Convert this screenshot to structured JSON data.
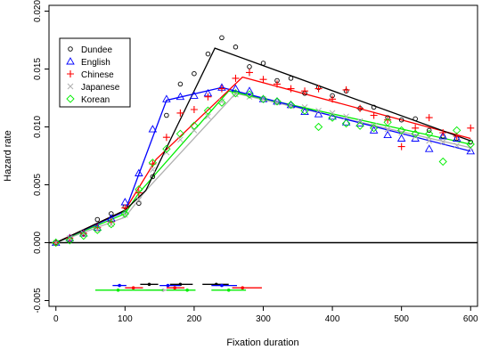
{
  "chart_data": {
    "type": "scatter",
    "title": "",
    "xlabel": "Fixation duration",
    "ylabel": "Hazard rate",
    "xlim": [
      -10,
      610
    ],
    "ylim": [
      -0.0055,
      0.0205
    ],
    "xticks": [
      0,
      100,
      200,
      300,
      400,
      500,
      600
    ],
    "yticks": [
      -0.005,
      0.0,
      0.005,
      0.01,
      0.015,
      0.02
    ],
    "ytick_labels": [
      "-0.005",
      "0.000",
      "0.005",
      "0.010",
      "0.015",
      "0.020"
    ],
    "reference_line": 0,
    "grid": false,
    "legend_position": "top-left",
    "series": [
      {
        "name": "Dundee",
        "marker": "circle",
        "color": "#000000",
        "points": [
          [
            0,
            0.0
          ],
          [
            20,
            0.0002
          ],
          [
            40,
            0.0008
          ],
          [
            60,
            0.002
          ],
          [
            80,
            0.0025
          ],
          [
            100,
            0.0031
          ],
          [
            120,
            0.0034
          ],
          [
            140,
            0.0057
          ],
          [
            160,
            0.011
          ],
          [
            180,
            0.0137
          ],
          [
            200,
            0.0146
          ],
          [
            220,
            0.0163
          ],
          [
            240,
            0.0177
          ],
          [
            260,
            0.0169
          ],
          [
            280,
            0.0152
          ],
          [
            300,
            0.0155
          ],
          [
            320,
            0.014
          ],
          [
            340,
            0.0142
          ],
          [
            360,
            0.0129
          ],
          [
            380,
            0.0134
          ],
          [
            400,
            0.0127
          ],
          [
            420,
            0.0131
          ],
          [
            440,
            0.0116
          ],
          [
            460,
            0.0117
          ],
          [
            480,
            0.0108
          ],
          [
            500,
            0.0106
          ],
          [
            520,
            0.0107
          ],
          [
            540,
            0.0097
          ],
          [
            560,
            0.0092
          ],
          [
            580,
            0.009
          ],
          [
            600,
            0.0087
          ]
        ],
        "fit": [
          [
            0,
            0.0
          ],
          [
            100,
            0.0028
          ],
          [
            130,
            0.0045
          ],
          [
            230,
            0.0168
          ],
          [
            600,
            0.0088
          ]
        ],
        "interval": {
          "center": 135,
          "low": 122,
          "high": 148,
          "y": -0.0036
        }
      },
      {
        "name": "English",
        "marker": "triangle",
        "color": "#0000ff",
        "points": [
          [
            0,
            0.0
          ],
          [
            20,
            0.0004
          ],
          [
            40,
            0.0008
          ],
          [
            60,
            0.0013
          ],
          [
            80,
            0.0021
          ],
          [
            100,
            0.0035
          ],
          [
            120,
            0.006
          ],
          [
            140,
            0.0098
          ],
          [
            160,
            0.0124
          ],
          [
            180,
            0.0126
          ],
          [
            200,
            0.0127
          ],
          [
            220,
            0.0129
          ],
          [
            240,
            0.0134
          ],
          [
            260,
            0.0133
          ],
          [
            280,
            0.0131
          ],
          [
            300,
            0.0124
          ],
          [
            320,
            0.0122
          ],
          [
            340,
            0.0119
          ],
          [
            360,
            0.0113
          ],
          [
            380,
            0.0111
          ],
          [
            400,
            0.0109
          ],
          [
            420,
            0.0104
          ],
          [
            440,
            0.0103
          ],
          [
            460,
            0.0097
          ],
          [
            480,
            0.0093
          ],
          [
            500,
            0.009
          ],
          [
            520,
            0.009
          ],
          [
            540,
            0.0081
          ],
          [
            560,
            0.0092
          ],
          [
            580,
            0.009
          ],
          [
            600,
            0.0079
          ]
        ],
        "fit": [
          [
            0,
            0.0
          ],
          [
            100,
            0.0027
          ],
          [
            160,
            0.0123
          ],
          [
            240,
            0.0134
          ],
          [
            600,
            0.0079
          ]
        ],
        "interval": {
          "center": 92,
          "low": 82,
          "high": 102,
          "y": -0.0037
        }
      },
      {
        "name": "Chinese",
        "marker": "plus",
        "color": "#ff0000",
        "points": [
          [
            0,
            0.0
          ],
          [
            20,
            0.0004
          ],
          [
            40,
            0.0008
          ],
          [
            60,
            0.0013
          ],
          [
            80,
            0.0018
          ],
          [
            100,
            0.003
          ],
          [
            120,
            0.0043
          ],
          [
            140,
            0.0068
          ],
          [
            160,
            0.0091
          ],
          [
            180,
            0.0112
          ],
          [
            200,
            0.0115
          ],
          [
            220,
            0.0126
          ],
          [
            240,
            0.0133
          ],
          [
            260,
            0.0142
          ],
          [
            280,
            0.0147
          ],
          [
            300,
            0.0141
          ],
          [
            320,
            0.0137
          ],
          [
            340,
            0.0133
          ],
          [
            360,
            0.0131
          ],
          [
            380,
            0.0133
          ],
          [
            400,
            0.0124
          ],
          [
            420,
            0.0132
          ],
          [
            440,
            0.0116
          ],
          [
            460,
            0.011
          ],
          [
            480,
            0.0106
          ],
          [
            500,
            0.0083
          ],
          [
            520,
            0.0099
          ],
          [
            540,
            0.0108
          ],
          [
            560,
            0.0095
          ],
          [
            580,
            0.0092
          ],
          [
            600,
            0.0099
          ]
        ],
        "fit": [
          [
            0,
            0.0
          ],
          [
            100,
            0.0028
          ],
          [
            145,
            0.0072
          ],
          [
            270,
            0.0143
          ],
          [
            600,
            0.009
          ]
        ],
        "interval": {
          "center": 270,
          "low": 255,
          "high": 298,
          "y": -0.0039
        }
      },
      {
        "name": "Japanese",
        "marker": "x",
        "color": "#b0b0b0",
        "points": [
          [
            0,
            0.0
          ],
          [
            20,
            0.0004
          ],
          [
            40,
            0.0008
          ],
          [
            60,
            0.0011
          ],
          [
            80,
            0.0016
          ],
          [
            100,
            0.0024
          ],
          [
            120,
            0.0037
          ],
          [
            140,
            0.0063
          ],
          [
            160,
            0.0078
          ],
          [
            180,
            0.0089
          ],
          [
            200,
            0.0097
          ],
          [
            220,
            0.0109
          ],
          [
            240,
            0.0122
          ],
          [
            260,
            0.0128
          ],
          [
            280,
            0.0126
          ],
          [
            300,
            0.0124
          ],
          [
            320,
            0.0121
          ],
          [
            340,
            0.0118
          ],
          [
            360,
            0.0117
          ],
          [
            380,
            0.0114
          ],
          [
            400,
            0.0112
          ],
          [
            420,
            0.0109
          ],
          [
            440,
            0.0105
          ],
          [
            460,
            0.0101
          ],
          [
            480,
            0.0098
          ],
          [
            500,
            0.0095
          ],
          [
            520,
            0.0092
          ],
          [
            540,
            0.0088
          ],
          [
            560,
            0.0087
          ],
          [
            580,
            0.0084
          ],
          [
            600,
            0.0082
          ]
        ],
        "fit": [
          [
            0,
            0.0
          ],
          [
            100,
            0.0022
          ],
          [
            130,
            0.0045
          ],
          [
            260,
            0.0129
          ],
          [
            600,
            0.0082
          ]
        ],
        "interval": {
          "center": 155,
          "low": 130,
          "high": 180,
          "y": -0.0041
        }
      },
      {
        "name": "Korean",
        "marker": "diamond",
        "color": "#00ee00",
        "points": [
          [
            0,
            0.0
          ],
          [
            20,
            0.0002
          ],
          [
            40,
            0.0006
          ],
          [
            60,
            0.0011
          ],
          [
            80,
            0.0016
          ],
          [
            100,
            0.0025
          ],
          [
            120,
            0.0046
          ],
          [
            140,
            0.0069
          ],
          [
            160,
            0.0081
          ],
          [
            180,
            0.0094
          ],
          [
            200,
            0.0101
          ],
          [
            220,
            0.0114
          ],
          [
            240,
            0.0121
          ],
          [
            260,
            0.0129
          ],
          [
            280,
            0.0128
          ],
          [
            300,
            0.0124
          ],
          [
            320,
            0.0122
          ],
          [
            340,
            0.0119
          ],
          [
            360,
            0.0114
          ],
          [
            380,
            0.01
          ],
          [
            400,
            0.0108
          ],
          [
            420,
            0.0103
          ],
          [
            440,
            0.0101
          ],
          [
            460,
            0.0099
          ],
          [
            480,
            0.0104
          ],
          [
            500,
            0.0097
          ],
          [
            520,
            0.0094
          ],
          [
            540,
            0.0094
          ],
          [
            560,
            0.007
          ],
          [
            580,
            0.0097
          ],
          [
            600,
            0.0085
          ]
        ],
        "fit": [
          [
            0,
            0.0
          ],
          [
            100,
            0.0025
          ],
          [
            120,
            0.0043
          ],
          [
            250,
            0.0131
          ],
          [
            600,
            0.0085
          ]
        ],
        "interval": {
          "center": 250,
          "low": 225,
          "high": 275,
          "y": -0.0041
        }
      }
    ],
    "extra_intervals": [
      {
        "color": "#000000",
        "center": 180,
        "low": 165,
        "high": 198,
        "y": -0.0036
      },
      {
        "color": "#000000",
        "center": 232,
        "low": 212,
        "high": 250,
        "y": -0.0036
      },
      {
        "color": "#ff0000",
        "center": 112,
        "low": 100,
        "high": 126,
        "y": -0.0039
      },
      {
        "color": "#ff0000",
        "center": 172,
        "low": 160,
        "high": 186,
        "y": -0.0039
      },
      {
        "color": "#0000ff",
        "center": 162,
        "low": 150,
        "high": 180,
        "y": -0.0037
      },
      {
        "color": "#0000ff",
        "center": 240,
        "low": 225,
        "high": 262,
        "y": -0.0037
      },
      {
        "color": "#00ee00",
        "center": 90,
        "low": 57,
        "high": 155,
        "y": -0.0041
      },
      {
        "color": "#00ee00",
        "center": 190,
        "low": 160,
        "high": 202,
        "y": -0.0041
      }
    ]
  }
}
